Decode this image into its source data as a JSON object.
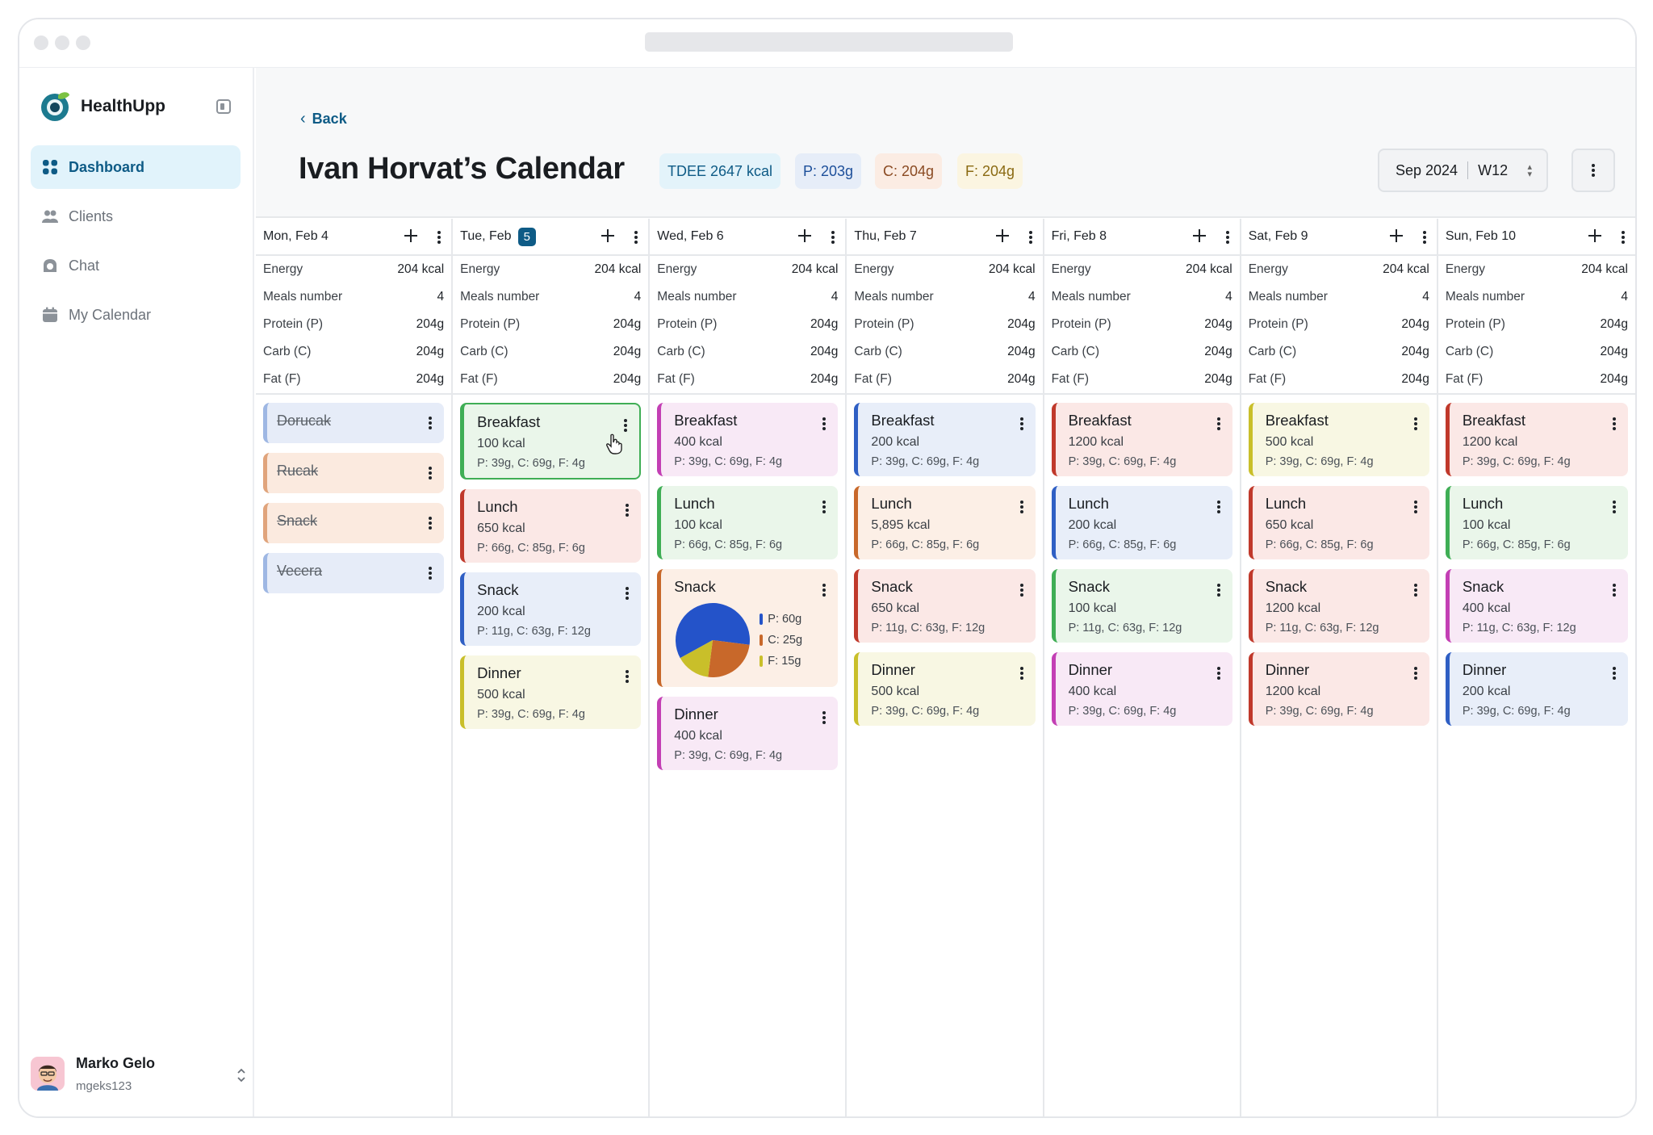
{
  "app": {
    "name": "HealthUpp"
  },
  "sidebar": {
    "items": [
      {
        "label": "Dashboard",
        "icon": "grid-icon",
        "active": true
      },
      {
        "label": "Clients",
        "icon": "users-icon",
        "active": false
      },
      {
        "label": "Chat",
        "icon": "chat-icon",
        "active": false
      },
      {
        "label": "My Calendar",
        "icon": "calendar-icon",
        "active": false
      }
    ],
    "user": {
      "name": "Marko Gelo",
      "handle": "mgeks123"
    }
  },
  "header": {
    "back_label": "Back",
    "title": "Ivan Horvat’s Calendar",
    "badges": [
      {
        "text": "TDEE 2647 kcal",
        "bg": "#e3f3fa",
        "fg": "#0e5b86"
      },
      {
        "text": "P: 203g",
        "bg": "#e6edf8",
        "fg": "#1d4f9a"
      },
      {
        "text": "C: 204g",
        "bg": "#fbece3",
        "fg": "#8a4a22"
      },
      {
        "text": "F: 204g",
        "bg": "#fbf5e1",
        "fg": "#8a6a12"
      }
    ],
    "period": {
      "month": "Sep 2024",
      "week": "W12"
    }
  },
  "stat_labels": [
    "Energy",
    "Meals number",
    "Protein (P)",
    "Carb (C)",
    "Fat (F)"
  ],
  "colors": {
    "blue": {
      "bg": "#e8eef9",
      "bar": "#2f5fc4"
    },
    "orange": {
      "bg": "#fcefe6",
      "bar": "#c8682a"
    },
    "peach": {
      "bg": "#fbeadf",
      "bar": "#e0a47c"
    },
    "red": {
      "bg": "#fbe8e6",
      "bar": "#c0392b"
    },
    "green": {
      "bg": "#eaf6ea",
      "bar": "#3fae55"
    },
    "yellow": {
      "bg": "#f8f7e3",
      "bar": "#c9bf2a"
    },
    "pink": {
      "bg": "#f8e9f6",
      "bar": "#c33fb4"
    },
    "lightblue": {
      "bg": "#e6ecf8",
      "bar": "#9eb7e3"
    }
  },
  "days": [
    {
      "label": "Mon, Feb 4",
      "badge": "",
      "stats": [
        "204 kcal",
        "4",
        "204g",
        "204g",
        "204g"
      ],
      "meals": [
        {
          "name": "Dorucak",
          "color": "lightblue",
          "strike": true
        },
        {
          "name": "Rucak",
          "color": "peach",
          "strike": true
        },
        {
          "name": "Snack",
          "color": "peach",
          "strike": true
        },
        {
          "name": "Vecera",
          "color": "lightblue",
          "strike": true
        }
      ]
    },
    {
      "label": "Tue, Feb",
      "badge": "5",
      "stats": [
        "204 kcal",
        "4",
        "204g",
        "204g",
        "204g"
      ],
      "meals": [
        {
          "name": "Breakfast",
          "kcal": "100 kcal",
          "macros": "P: 39g,  C: 69g,  F: 4g",
          "color": "green",
          "selected": true
        },
        {
          "name": "Lunch",
          "kcal": "650 kcal",
          "macros": "P: 66g,  C: 85g,  F: 6g",
          "color": "red"
        },
        {
          "name": "Snack",
          "kcal": "200 kcal",
          "macros": "P: 11g,  C: 63g,  F: 12g",
          "color": "blue"
        },
        {
          "name": "Dinner",
          "kcal": "500 kcal",
          "macros": "P: 39g,  C: 69g,  F: 4g",
          "color": "yellow"
        }
      ]
    },
    {
      "label": "Wed, Feb 6",
      "badge": "",
      "stats": [
        "204 kcal",
        "4",
        "204g",
        "204g",
        "204g"
      ],
      "meals": [
        {
          "name": "Breakfast",
          "kcal": "400 kcal",
          "macros": "P: 39g,  C: 69g,  F: 4g",
          "color": "pink"
        },
        {
          "name": "Lunch",
          "kcal": "100 kcal",
          "macros": "P: 66g,  C: 85g,  F: 6g",
          "color": "green"
        },
        {
          "name": "Snack",
          "color": "orange",
          "pie": [
            {
              "label": "P:",
              "value": "60g",
              "num": 60,
              "color": "#2453c9"
            },
            {
              "label": "C:",
              "value": "25g",
              "num": 25,
              "color": "#c8682a"
            },
            {
              "label": "F:",
              "value": "15g",
              "num": 15,
              "color": "#c9bf2a"
            }
          ]
        },
        {
          "name": "Dinner",
          "kcal": "400 kcal",
          "macros": "P: 39g,  C: 69g,  F: 4g",
          "color": "pink"
        }
      ]
    },
    {
      "label": "Thu, Feb 7",
      "badge": "",
      "stats": [
        "204 kcal",
        "4",
        "204g",
        "204g",
        "204g"
      ],
      "meals": [
        {
          "name": "Breakfast",
          "kcal": "200 kcal",
          "macros": "P: 39g,  C: 69g,  F: 4g",
          "color": "blue"
        },
        {
          "name": "Lunch",
          "kcal": "5,895 kcal",
          "macros": "P: 66g,  C: 85g,  F: 6g",
          "color": "orange"
        },
        {
          "name": "Snack",
          "kcal": "650 kcal",
          "macros": "P: 11g,  C: 63g,  F: 12g",
          "color": "red"
        },
        {
          "name": "Dinner",
          "kcal": "500 kcal",
          "macros": "P: 39g,  C: 69g,  F: 4g",
          "color": "yellow"
        }
      ]
    },
    {
      "label": "Fri, Feb 8",
      "badge": "",
      "stats": [
        "204 kcal",
        "4",
        "204g",
        "204g",
        "204g"
      ],
      "meals": [
        {
          "name": "Breakfast",
          "kcal": "1200 kcal",
          "macros": "P: 39g,  C: 69g,  F: 4g",
          "color": "red"
        },
        {
          "name": "Lunch",
          "kcal": "200 kcal",
          "macros": "P: 66g,  C: 85g,  F: 6g",
          "color": "blue"
        },
        {
          "name": "Snack",
          "kcal": "100 kcal",
          "macros": "P: 11g,  C: 63g,  F: 12g",
          "color": "green"
        },
        {
          "name": "Dinner",
          "kcal": "400 kcal",
          "macros": "P: 39g,  C: 69g,  F: 4g",
          "color": "pink"
        }
      ]
    },
    {
      "label": "Sat, Feb 9",
      "badge": "",
      "stats": [
        "204 kcal",
        "4",
        "204g",
        "204g",
        "204g"
      ],
      "meals": [
        {
          "name": "Breakfast",
          "kcal": "500 kcal",
          "macros": "P: 39g,  C: 69g,  F: 4g",
          "color": "yellow"
        },
        {
          "name": "Lunch",
          "kcal": "650 kcal",
          "macros": "P: 66g,  C: 85g,  F: 6g",
          "color": "red"
        },
        {
          "name": "Snack",
          "kcal": "1200 kcal",
          "macros": "P: 11g,  C: 63g,  F: 12g",
          "color": "red"
        },
        {
          "name": "Dinner",
          "kcal": "1200 kcal",
          "macros": "P: 39g,  C: 69g,  F: 4g",
          "color": "red"
        }
      ]
    },
    {
      "label": "Sun, Feb 10",
      "badge": "",
      "stats": [
        "204 kcal",
        "4",
        "204g",
        "204g",
        "204g"
      ],
      "meals": [
        {
          "name": "Breakfast",
          "kcal": "1200 kcal",
          "macros": "P: 39g,  C: 69g,  F: 4g",
          "color": "red"
        },
        {
          "name": "Lunch",
          "kcal": "100 kcal",
          "macros": "P: 66g,  C: 85g,  F: 6g",
          "color": "green"
        },
        {
          "name": "Snack",
          "kcal": "400 kcal",
          "macros": "P: 11g,  C: 63g,  F: 12g",
          "color": "pink"
        },
        {
          "name": "Dinner",
          "kcal": "200 kcal",
          "macros": "P: 39g,  C: 69g,  F: 4g",
          "color": "blue"
        }
      ]
    }
  ]
}
